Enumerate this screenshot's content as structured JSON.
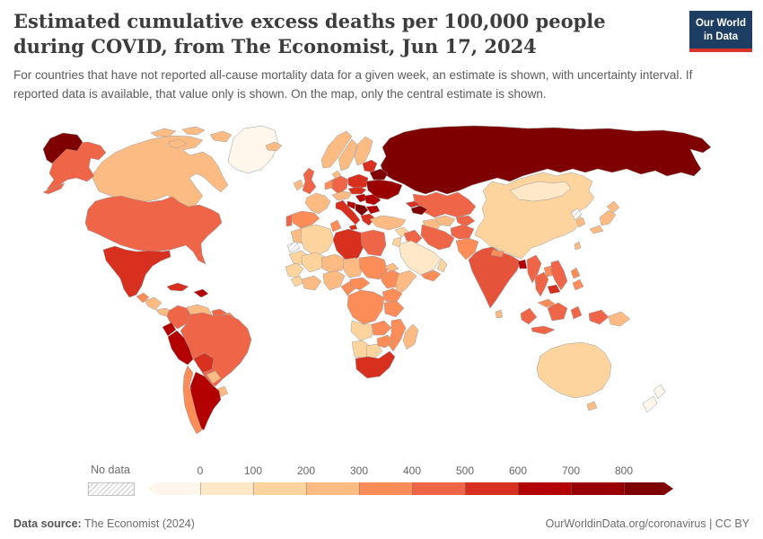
{
  "header": {
    "title": "Estimated cumulative excess deaths per 100,000 people during COVID, from The Economist, Jun 17, 2024",
    "subtitle": "For countries that have not reported all-cause mortality data for a given week, an estimate is shown, with uncertainty interval. If reported data is available, that value only is shown. On the map, only the central estimate is shown.",
    "logo": {
      "line1": "Our World",
      "line2": "in Data",
      "bg_color": "#1d3d63",
      "accent_color": "#d8352a"
    }
  },
  "legend": {
    "no_data_label": "No data",
    "ticks": [
      "0",
      "100",
      "200",
      "300",
      "400",
      "500",
      "600",
      "700",
      "800"
    ],
    "colors": [
      "#fff7ec",
      "#fee8c8",
      "#fdd49e",
      "#fdbb84",
      "#fc8d59",
      "#ef6548",
      "#d7301f",
      "#b30000",
      "#9b0000",
      "#7f0000"
    ]
  },
  "footer": {
    "source_label": "Data source:",
    "source_value": " The Economist (2024)",
    "right_text": "OurWorldinData.org/coronavirus | CC BY"
  },
  "map": {
    "colors": {
      "russia": "#7f0000",
      "canada": "#fdbb84",
      "canada_islands": "#fdbb84",
      "greenland": "#fff7ec",
      "alaska": "#ef6548",
      "aleutians": "#ef6548",
      "chukotka": "#7f0000",
      "usa": "#ef6548",
      "mexico": "#d7301f",
      "guatemala": "#fc8d59",
      "honduras_nicaragua": "#fdbb84",
      "costa_rica_panama": "#fdbb84",
      "cuba": "#d7301f",
      "hispaniola": "#b30000",
      "colombia": "#ef6548",
      "venezuela": "#fdbb84",
      "guyana": "#ef6548",
      "suriname": "#fc8d59",
      "ecuador": "#b30000",
      "peru": "#b30000",
      "brazil": "#ef6548",
      "bolivia": "#d7301f",
      "paraguay": "#fdbb84",
      "uruguay": "#fdbb84",
      "argentina": "#b30000",
      "chile": "#fc8d59",
      "iceland": "#fdbb84",
      "uk": "#ef6548",
      "ireland": "#fdbb84",
      "norway": "#fdbb84",
      "sweden": "#fdbb84",
      "finland": "#fdbb84",
      "denmark": "#fdbb84",
      "germany": "#ef6548",
      "benelux": "#fc8d59",
      "france": "#fdbb84",
      "spain": "#fc8d59",
      "portugal": "#ef6548",
      "alps": "#fdbb84",
      "italy": "#d7301f",
      "poland": "#d7301f",
      "czech_slovakia": "#d7301f",
      "hungary": "#b30000",
      "romania": "#b30000",
      "bosnia_croatia": "#b30000",
      "serbia_balkans": "#7f0000",
      "bulgaria": "#b30000",
      "greece": "#d7301f",
      "baltics": "#d7301f",
      "belarus": "#7f0000",
      "ukraine": "#9b0000",
      "kazakhstan": "#ef6548",
      "uzbekistan": "#fdbb84",
      "turkmenistan": "#fdbb84",
      "kyrgyz_tajik": "#ef6548",
      "georgia": "#d7301f",
      "caucasus": "#7f0000",
      "turkey": "#fdbb84",
      "syria": "#fdd49e",
      "iraq": "#ef6548",
      "iran": "#ef6548",
      "saudi_arabia": "#fee8c8",
      "yemen": "#fc8d59",
      "oman": "#fdd49e",
      "jordan_israel": "#fdd49e",
      "afghanistan": "#ef6548",
      "pakistan": "#fc8d59",
      "india": "#e5533a",
      "nepal": "#fc8d59",
      "sri_lanka": "#fdbb84",
      "bangladesh": "#b30000",
      "myanmar": "#ef6548",
      "thailand": "#ef6548",
      "laos": "#fc8d59",
      "vietnam": "#ef6548",
      "cambodia": "#d7301f",
      "malaysia": "#fc8d59",
      "china": "#fdd49e",
      "mongolia": "#fee8c8",
      "north_korea": "url(#hatch)",
      "south_korea": "#fdbb84",
      "japan": "#fdbb84",
      "taiwan": "#fdbb84",
      "philippines": "#fc8d59",
      "indonesia": "#ef6548",
      "papua_new_guinea": "#fdbb84",
      "morocco": "#fdbb84",
      "western_sahara": "url(#hatch)",
      "algeria": "#fdd49e",
      "tunisia": "#fc8d59",
      "libya": "#d7301f",
      "egypt": "#ef6548",
      "mauritania": "#fdd49e",
      "mali": "#fdd49e",
      "niger": "#fdbb84",
      "chad": "#fdbb84",
      "sudan": "#fc8d59",
      "eritrea": "#fdbb84",
      "ethiopia": "#fc8d59",
      "somalia": "#fdbb84",
      "senegal_guinea": "#fdd49e",
      "sierra_liberia": "#fdd49e",
      "ivory_ghana": "#fdbb84",
      "nigeria": "#fdbb84",
      "cameroon": "#fc8d59",
      "car": "#fc8d59",
      "drc": "#fc8d59",
      "uganda_kenya": "#fc8d59",
      "tanzania": "#fc8d59",
      "angola": "#fdd49e",
      "zambia": "#fc8d59",
      "mozambique": "#fc8d59",
      "zimbabwe": "#fc8d59",
      "namibia": "#fdd49e",
      "botswana": "#fdd49e",
      "south_africa": "#d7301f",
      "madagascar": "#fdbb84",
      "australia": "#fdd49e",
      "tasmania": "#fdbb84",
      "new_zealand": "#fff7ec"
    }
  },
  "chart_data": {
    "type": "heatmap",
    "subtype": "world-choropleth",
    "title": "Estimated cumulative excess deaths per 100,000 people during COVID, from The Economist, Jun 17, 2024",
    "unit": "excess deaths per 100,000 people",
    "legend_position": "bottom",
    "bins": [
      {
        "range": "<0",
        "color": "#fff7ec"
      },
      {
        "range": "0–100",
        "color": "#fee8c8"
      },
      {
        "range": "100–200",
        "color": "#fdd49e"
      },
      {
        "range": "200–300",
        "color": "#fdbb84"
      },
      {
        "range": "300–400",
        "color": "#fc8d59"
      },
      {
        "range": "400–500",
        "color": "#ef6548"
      },
      {
        "range": "500–600",
        "color": "#d7301f"
      },
      {
        "range": "600–700",
        "color": "#b30000"
      },
      {
        "range": "700–800",
        "color": "#9b0000"
      },
      {
        "range": "800+",
        "color": "#7f0000"
      }
    ],
    "country_bins": {
      "russia": "800+",
      "belarus": "800+",
      "serbia": "800+",
      "armenia_azerbaijan": "800+",
      "ukraine": "700–800",
      "peru": "600–700",
      "ecuador": "600–700",
      "argentina": "600–700",
      "romania": "600–700",
      "bulgaria": "600–700",
      "bangladesh": "600–700",
      "hungary": "600–700",
      "mexico": "500–600",
      "cuba": "500–600",
      "italy": "500–600",
      "poland": "500–600",
      "greece": "500–600",
      "libya": "500–600",
      "south_africa": "500–600",
      "bolivia": "500–600",
      "cambodia": "500–600",
      "united_states": "400–500",
      "brazil": "400–500",
      "colombia": "400–500",
      "united_kingdom": "400–500",
      "germany": "400–500",
      "portugal": "400–500",
      "kazakhstan": "400–500",
      "iran": "400–500",
      "iraq": "400–500",
      "egypt": "400–500",
      "india": "400–500",
      "myanmar": "400–500",
      "thailand": "400–500",
      "vietnam": "400–500",
      "indonesia": "400–500",
      "afghanistan": "400–500",
      "spain": "300–400",
      "chile": "300–400",
      "pakistan": "300–400",
      "ethiopia": "300–400",
      "dr_congo": "300–400",
      "philippines": "300–400",
      "guatemala": "300–400",
      "sudan": "300–400",
      "tunisia": "300–400",
      "canada": "200–300",
      "france": "200–300",
      "norway": "200–300",
      "sweden": "200–300",
      "finland": "200–300",
      "turkey": "200–300",
      "japan": "200–300",
      "south_korea": "200–300",
      "venezuela": "200–300",
      "morocco": "200–300",
      "nigeria": "200–300",
      "madagascar": "200–300",
      "australia": "100–200",
      "algeria": "100–200",
      "china": "100–200",
      "syria": "100–200",
      "saudi_arabia": "0–100",
      "mongolia": "0–100",
      "greenland": "<0",
      "new_zealand": "<0",
      "north_korea": "No data",
      "western_sahara": "No data"
    }
  }
}
